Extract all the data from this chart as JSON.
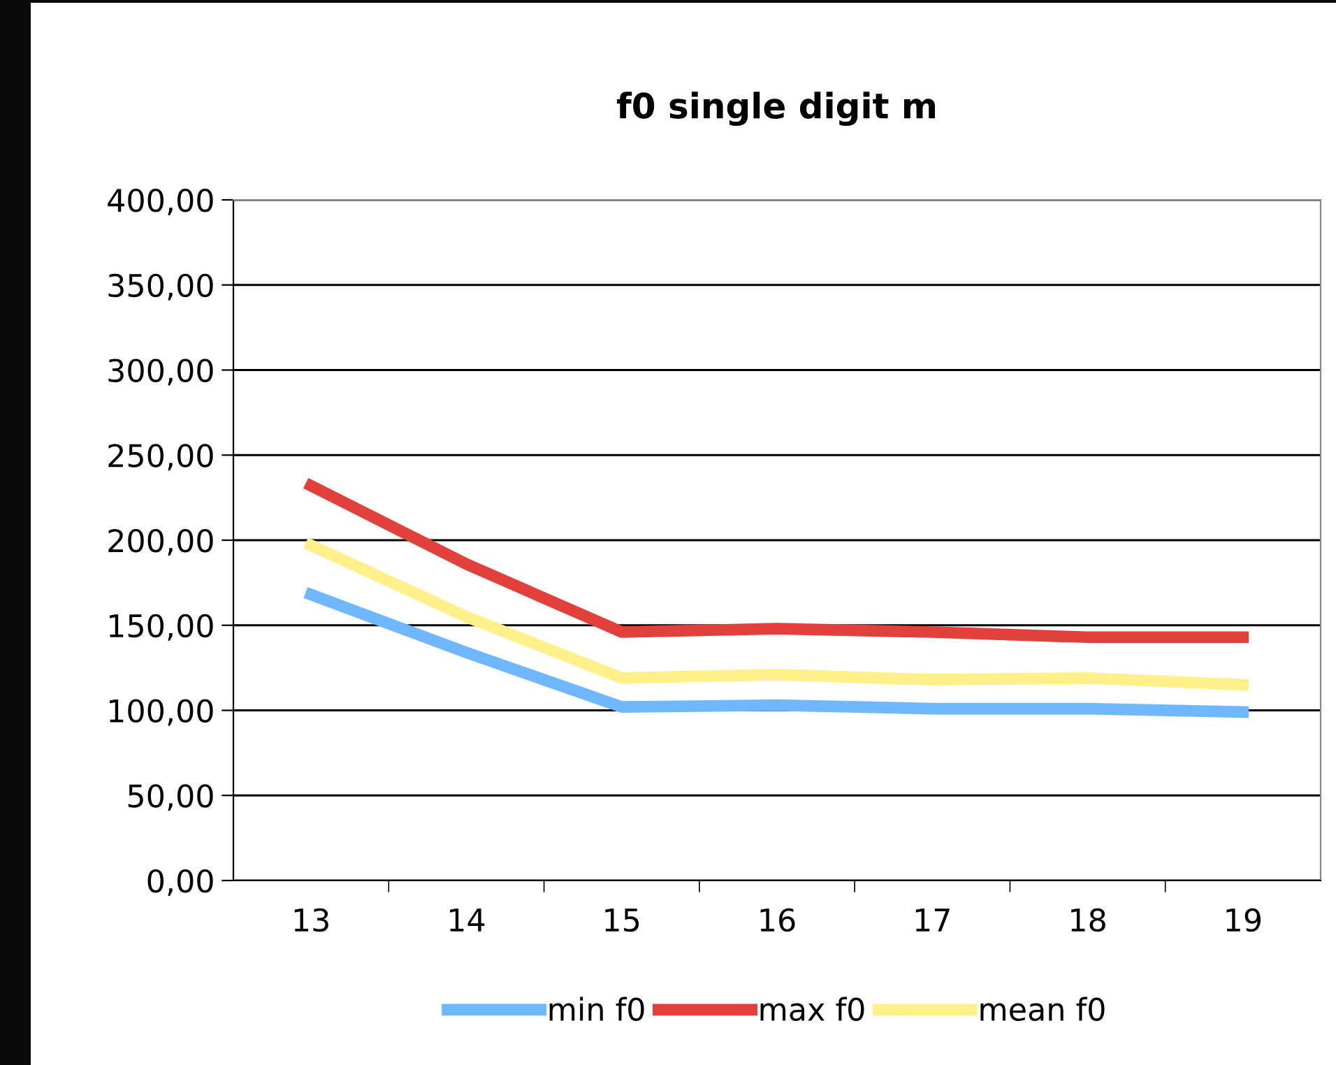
{
  "chart_data": {
    "type": "line",
    "title": "f0 single digit m",
    "categories": [
      "13",
      "14",
      "15",
      "16",
      "17",
      "18",
      "19"
    ],
    "series": [
      {
        "name": "min f0",
        "color": "#6fb7ff",
        "values": [
          168,
          134,
          102,
          103,
          101,
          101,
          99
        ]
      },
      {
        "name": "max f0",
        "color": "#e2403a",
        "values": [
          232,
          186,
          146,
          148,
          146,
          143,
          143
        ]
      },
      {
        "name": "mean f0",
        "color": "#fff08c",
        "values": [
          197,
          155,
          119,
          121,
          118,
          119,
          115
        ]
      }
    ],
    "ylim": [
      0,
      400
    ],
    "yticks": [
      {
        "value": 0,
        "label": "0,00"
      },
      {
        "value": 50,
        "label": "50,00"
      },
      {
        "value": 100,
        "label": "100,00"
      },
      {
        "value": 150,
        "label": "150,00"
      },
      {
        "value": 200,
        "label": "200,00"
      },
      {
        "value": 250,
        "label": "250,00"
      },
      {
        "value": 300,
        "label": "300,00"
      },
      {
        "value": 350,
        "label": "350,00"
      },
      {
        "value": 400,
        "label": "400,00"
      }
    ],
    "grid": "y",
    "legend": "bottom",
    "marker": "none",
    "line_style": "solid"
  }
}
